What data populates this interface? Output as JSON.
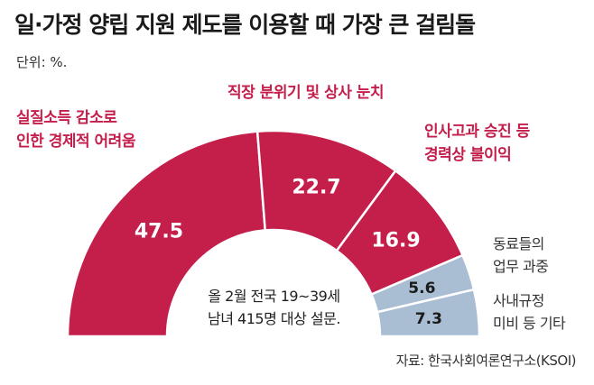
{
  "title": "일·가정 양립 지원 제도를 이용할 때 가장 큰 걸림돌",
  "unit": "단위: %.",
  "note": [
    "올 2월 전국 19~39세",
    "남녀 415명 대상 설문."
  ],
  "source": "자료: 한국사회여론연구소(KSOI)",
  "colors": {
    "major": "#c41e4b",
    "minor": "#a9bdd3",
    "divider": "#ffffff"
  },
  "chart_data": {
    "type": "pie",
    "variant": "half-donut",
    "title": "일·가정 양립 지원 제도를 이용할 때 가장 큰 걸림돌",
    "unit": "%",
    "slices": [
      {
        "label": [
          "실질소득 감소로",
          "인한 경제적 어려움"
        ],
        "value": 47.5,
        "value_label": "47.5",
        "group": "major"
      },
      {
        "label": [
          "직장 분위기 및 상사 눈치"
        ],
        "value": 22.7,
        "value_label": "22.7",
        "group": "major"
      },
      {
        "label": [
          "인사고과 승진 등",
          "경력상 불이익"
        ],
        "value": 16.9,
        "value_label": "16.9",
        "group": "major"
      },
      {
        "label": [
          "동료들의",
          "업무 과중"
        ],
        "value": 5.6,
        "value_label": "5.6",
        "group": "minor"
      },
      {
        "label": [
          "사내규정",
          "미비 등 기타"
        ],
        "value": 7.3,
        "value_label": "7.3",
        "group": "minor"
      }
    ]
  }
}
